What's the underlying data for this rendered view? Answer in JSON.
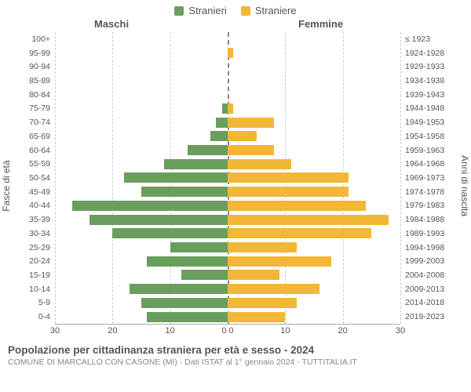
{
  "chart": {
    "type": "population-pyramid",
    "legend": {
      "male": {
        "label": "Stranieri",
        "color": "#6a9e5d"
      },
      "female": {
        "label": "Straniere",
        "color": "#f2b736"
      }
    },
    "header_male": "Maschi",
    "header_female": "Femmine",
    "y_left_title": "Fasce di età",
    "y_right_title": "Anni di nascita",
    "grid_color": "#cccccc",
    "center_color": "#888888",
    "background_color": "#ffffff",
    "bar_male_color": "#6a9e5d",
    "bar_female_color": "#f2b736",
    "xmax": 30,
    "x_ticks_left": [
      30,
      20,
      10,
      0
    ],
    "x_ticks_right": [
      0,
      10,
      20,
      30
    ],
    "age_labels": [
      "100+",
      "95-99",
      "90-94",
      "85-89",
      "80-84",
      "75-79",
      "70-74",
      "65-69",
      "60-64",
      "55-59",
      "50-54",
      "45-49",
      "40-44",
      "35-39",
      "30-34",
      "25-29",
      "20-24",
      "15-19",
      "10-14",
      "5-9",
      "0-4"
    ],
    "birth_labels": [
      "≤ 1923",
      "1924-1928",
      "1929-1933",
      "1934-1938",
      "1939-1943",
      "1944-1948",
      "1949-1953",
      "1954-1958",
      "1959-1963",
      "1964-1968",
      "1969-1973",
      "1974-1978",
      "1979-1983",
      "1984-1988",
      "1989-1993",
      "1994-1998",
      "1999-2003",
      "2004-2008",
      "2009-2013",
      "2014-2018",
      "2019-2023"
    ],
    "male_values": [
      0,
      0,
      0,
      0,
      0,
      1,
      2,
      3,
      7,
      11,
      18,
      15,
      27,
      24,
      20,
      10,
      14,
      8,
      17,
      15,
      14
    ],
    "female_values": [
      0,
      1,
      0,
      0,
      0,
      1,
      8,
      5,
      8,
      11,
      21,
      21,
      24,
      28,
      25,
      12,
      18,
      9,
      16,
      12,
      10
    ],
    "label_fontsize": 10.5,
    "tick_fontsize": 11,
    "title_main": "Popolazione per cittadinanza straniera per età e sesso - 2024",
    "title_sub": "COMUNE DI MARCALLO CON CASONE (MI) - Dati ISTAT al 1° gennaio 2024 - TUTTITALIA.IT",
    "title_color": "#555555",
    "sub_color": "#888888"
  }
}
